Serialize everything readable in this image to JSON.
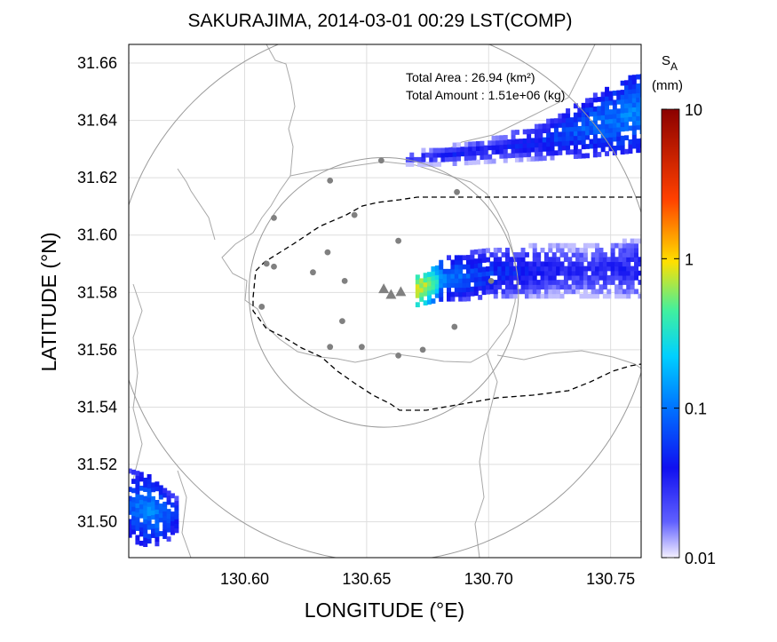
{
  "title": "SAKURAJIMA, 2014-03-01 00:29 LST(COMP)",
  "annotation": {
    "total_area": "Total Area   : 26.94 (km²)",
    "total_amount": "Total Amount : 1.51e+06 (kg)"
  },
  "colorbar": {
    "label_symbol": "S",
    "label_subscript": "A",
    "unit": "(mm)",
    "scale": "log",
    "range": [
      0.01,
      10
    ],
    "ticks": [
      "10",
      "1",
      "0.1",
      "0.01"
    ],
    "colors": [
      "#f4f0ff",
      "#1010f0",
      "#0090ff",
      "#00e8e8",
      "#ffe000",
      "#ff4000",
      "#8b0000"
    ]
  },
  "chart_data": {
    "type": "heatmap",
    "title": "SAKURAJIMA, 2014-03-01 00:29 LST(COMP)",
    "xlabel": "LONGITUDE (°E)",
    "ylabel": "LATITUDE (°N)",
    "xlim": [
      130.5525,
      130.7625
    ],
    "ylim": [
      31.4875,
      31.6665
    ],
    "xticks": [
      "130.60",
      "130.65",
      "130.70",
      "130.75"
    ],
    "yticks": [
      "31.66",
      "31.64",
      "31.62",
      "31.60",
      "31.58",
      "31.56",
      "31.54",
      "31.52",
      "31.50"
    ],
    "grid": true,
    "plumes": [
      {
        "name": "",
        "lon": [
          130.67,
          130.68,
          130.69,
          130.7,
          130.72,
          130.74,
          130.762
        ],
        "lat_center": [
          31.58,
          31.584,
          31.585,
          31.586,
          31.587,
          31.587,
          31.588
        ],
        "half_width": [
          0.005,
          0.007,
          0.008,
          0.008,
          0.009,
          0.009,
          0.01
        ],
        "values": [
          1.0,
          0.12,
          0.08,
          0.06,
          0.04,
          0.03,
          0.04
        ]
      },
      {
        "name": "",
        "lon": [
          130.666,
          130.68,
          130.7,
          130.72,
          130.74,
          130.762
        ],
        "lat_center": [
          31.626,
          31.627,
          31.629,
          31.632,
          31.637,
          31.643
        ],
        "half_width": [
          0.002,
          0.003,
          0.004,
          0.006,
          0.01,
          0.014
        ],
        "values": [
          0.03,
          0.04,
          0.04,
          0.05,
          0.09,
          0.12
        ]
      },
      {
        "name": "",
        "lon": [
          130.552,
          130.56,
          130.565,
          130.572
        ],
        "lat_center": [
          31.505,
          31.503,
          31.502,
          31.501
        ],
        "half_width": [
          0.012,
          0.012,
          0.01,
          0.006
        ],
        "values": [
          0.08,
          0.12,
          0.1,
          0.06
        ]
      }
    ],
    "stations": [
      [
        130.635,
        31.619
      ],
      [
        130.656,
        31.626
      ],
      [
        130.687,
        31.615
      ],
      [
        130.645,
        31.607
      ],
      [
        130.612,
        31.606
      ],
      [
        130.609,
        31.59
      ],
      [
        130.612,
        31.589
      ],
      [
        130.663,
        31.598
      ],
      [
        130.628,
        31.587
      ],
      [
        130.634,
        31.594
      ],
      [
        130.641,
        31.584
      ],
      [
        130.701,
        31.584
      ],
      [
        130.607,
        31.575
      ],
      [
        130.64,
        31.57
      ],
      [
        130.686,
        31.568
      ],
      [
        130.635,
        31.561
      ],
      [
        130.648,
        31.561
      ],
      [
        130.663,
        31.558
      ],
      [
        130.673,
        31.56
      ]
    ],
    "vents": [
      [
        130.657,
        31.581
      ],
      [
        130.66,
        31.579
      ],
      [
        130.664,
        31.58
      ]
    ],
    "range_circles": [
      {
        "center": [
          130.657,
          31.58
        ],
        "radius_deg_lat": 0.047
      },
      {
        "center": [
          130.657,
          31.58
        ],
        "radius_deg_lat": 0.094
      }
    ]
  }
}
